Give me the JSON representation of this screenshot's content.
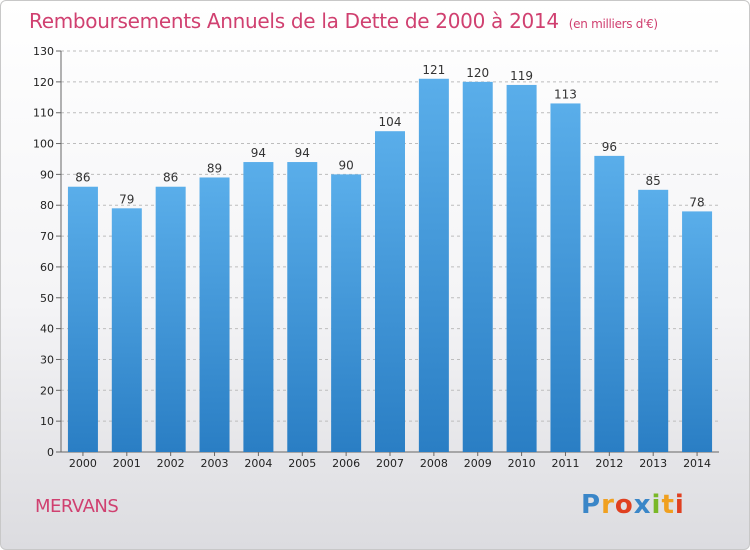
{
  "title": "Remboursements Annuels de la Dette de 2000 à 2014",
  "unit": "(en milliers d'€)",
  "commune": "MERVANS",
  "logo": "Proxiti",
  "colors": {
    "bar": "#3a8fd6",
    "title": "#d04070"
  },
  "chart_data": {
    "type": "bar",
    "title": "Remboursements Annuels de la Dette de 2000 à 2014",
    "xlabel": "",
    "ylabel": "",
    "categories": [
      "2000",
      "2001",
      "2002",
      "2003",
      "2004",
      "2005",
      "2006",
      "2007",
      "2008",
      "2009",
      "2010",
      "2011",
      "2012",
      "2013",
      "2014"
    ],
    "values": [
      86,
      79,
      86,
      89,
      94,
      94,
      90,
      104,
      121,
      120,
      119,
      113,
      96,
      85,
      78
    ],
    "ylim": [
      0,
      130
    ],
    "yticks": [
      0,
      10,
      20,
      30,
      40,
      50,
      60,
      70,
      80,
      90,
      100,
      110,
      120,
      130
    ],
    "grid": true
  }
}
